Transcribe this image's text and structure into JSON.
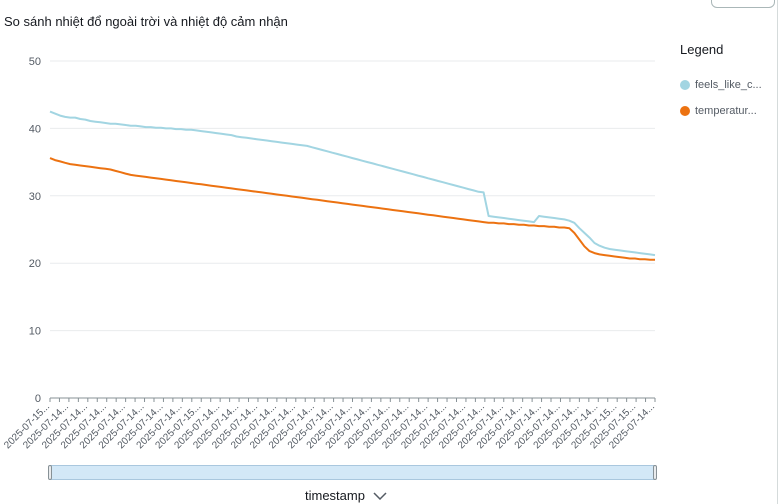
{
  "chart_data": {
    "type": "line",
    "title": "So sánh nhiệt đổ ngoài trời và nhiệt độ cảm nhận",
    "xlabel": "timestamp",
    "ylabel": "",
    "ylim": [
      0,
      50
    ],
    "yticks": [
      0,
      10,
      20,
      30,
      40,
      50
    ],
    "grid": true,
    "legend_position": "right",
    "x_tick_labels": [
      "2025-07-15...",
      "2025-07-15...",
      "2025-07-14...",
      "2025-07-14...",
      "2025-07-14...",
      "2025-07-14...",
      "2025-07-14...",
      "2025-07-14...",
      "2025-07-14...",
      "2025-07-14...",
      "2025-07-14...",
      "2025-07-14...",
      "2025-07-14...",
      "2025-07-14...",
      "2025-07-14...",
      "2025-07-14...",
      "2025-07-15...",
      "2025-07-14...",
      "2025-07-14...",
      "2025-07-14...",
      "2025-07-14...",
      "2025-07-14...",
      "2025-07-14...",
      "2025-07-14...",
      "2025-07-14...",
      "2025-07-14...",
      "2025-07-14...",
      "2025-07-14...",
      "2025-07-14...",
      "2025-07-14...",
      "2025-07-14...",
      "2025-07-14...",
      "2025-07-14...",
      "2025-07-14...",
      "2025-07-14...",
      "2025-07-14...",
      "2025-07-14...",
      "2025-07-14...",
      "2025-07-14...",
      "2025-07-14...",
      "2025-07-14...",
      "2025-07-14...",
      "2025-07-14...",
      "2025-07-14...",
      "2025-07-14...",
      "2025-07-14...",
      "2025-07-14...",
      "2025-07-14...",
      "2025-07-14...",
      "2025-07-14...",
      "2025-07-14...",
      "2025-07-14...",
      "2025-07-14...",
      "2025-07-14...",
      "2025-07-14...",
      "2025-07-14...",
      "2025-07-14...",
      "2025-07-14...",
      "2025-07-14...",
      "2025-07-14...",
      "2025-07-15...",
      "2025-07-15...",
      "2025-07-15...",
      "2025-07-14...",
      "2025-07-14..."
    ],
    "x_count": 121,
    "series": [
      {
        "name": "feels_like_c...",
        "color": "#a2d5e2",
        "values": [
          42.5,
          42.2,
          41.9,
          41.7,
          41.6,
          41.6,
          41.4,
          41.3,
          41.1,
          41.0,
          40.9,
          40.8,
          40.7,
          40.7,
          40.6,
          40.5,
          40.4,
          40.4,
          40.3,
          40.2,
          40.2,
          40.1,
          40.1,
          40.0,
          40.0,
          39.9,
          39.9,
          39.8,
          39.8,
          39.7,
          39.6,
          39.5,
          39.4,
          39.3,
          39.2,
          39.1,
          39.0,
          38.8,
          38.7,
          38.6,
          38.5,
          38.4,
          38.3,
          38.2,
          38.1,
          38.0,
          37.9,
          37.8,
          37.7,
          37.6,
          37.5,
          37.4,
          37.2,
          37.0,
          36.8,
          36.6,
          36.4,
          36.2,
          36.0,
          35.8,
          35.6,
          35.4,
          35.2,
          35.0,
          34.8,
          34.6,
          34.4,
          34.2,
          34.0,
          33.8,
          33.6,
          33.4,
          33.2,
          33.0,
          32.8,
          32.6,
          32.4,
          32.2,
          32.0,
          31.8,
          31.6,
          31.4,
          31.2,
          31.0,
          30.8,
          30.6,
          30.5,
          27.0,
          26.9,
          26.8,
          26.7,
          26.6,
          26.5,
          26.4,
          26.3,
          26.2,
          26.1,
          27.0,
          26.9,
          26.8,
          26.7,
          26.6,
          26.5,
          26.3,
          26.0,
          25.2,
          24.5,
          23.8,
          23.0,
          22.6,
          22.3,
          22.1,
          22.0,
          21.9,
          21.8,
          21.7,
          21.6,
          21.5,
          21.4,
          21.3,
          21.2
        ]
      },
      {
        "name": "temperatur...",
        "color": "#ec7211",
        "values": [
          35.6,
          35.3,
          35.1,
          34.9,
          34.7,
          34.6,
          34.5,
          34.4,
          34.3,
          34.2,
          34.1,
          34.0,
          33.9,
          33.7,
          33.5,
          33.3,
          33.1,
          33.0,
          32.9,
          32.8,
          32.7,
          32.6,
          32.5,
          32.4,
          32.3,
          32.2,
          32.1,
          32.0,
          31.9,
          31.8,
          31.7,
          31.6,
          31.5,
          31.4,
          31.3,
          31.2,
          31.1,
          31.0,
          30.9,
          30.8,
          30.7,
          30.6,
          30.5,
          30.4,
          30.3,
          30.2,
          30.1,
          30.0,
          29.9,
          29.8,
          29.7,
          29.6,
          29.5,
          29.4,
          29.3,
          29.2,
          29.1,
          29.0,
          28.9,
          28.8,
          28.7,
          28.6,
          28.5,
          28.4,
          28.3,
          28.2,
          28.1,
          28.0,
          27.9,
          27.8,
          27.7,
          27.6,
          27.5,
          27.4,
          27.3,
          27.2,
          27.1,
          27.0,
          26.9,
          26.8,
          26.7,
          26.6,
          26.5,
          26.4,
          26.3,
          26.2,
          26.1,
          26.0,
          26.0,
          25.9,
          25.9,
          25.8,
          25.8,
          25.7,
          25.7,
          25.6,
          25.6,
          25.5,
          25.5,
          25.4,
          25.4,
          25.3,
          25.3,
          25.2,
          24.5,
          23.5,
          22.5,
          21.8,
          21.5,
          21.3,
          21.2,
          21.1,
          21.0,
          20.9,
          20.8,
          20.7,
          20.7,
          20.6,
          20.6,
          20.5,
          20.5
        ]
      }
    ]
  },
  "legend": {
    "title": "Legend",
    "items": [
      {
        "label": "feels_like_c...",
        "color": "#a2d5e2"
      },
      {
        "label": "temperatur...",
        "color": "#ec7211"
      }
    ]
  },
  "x_axis_title": "timestamp"
}
